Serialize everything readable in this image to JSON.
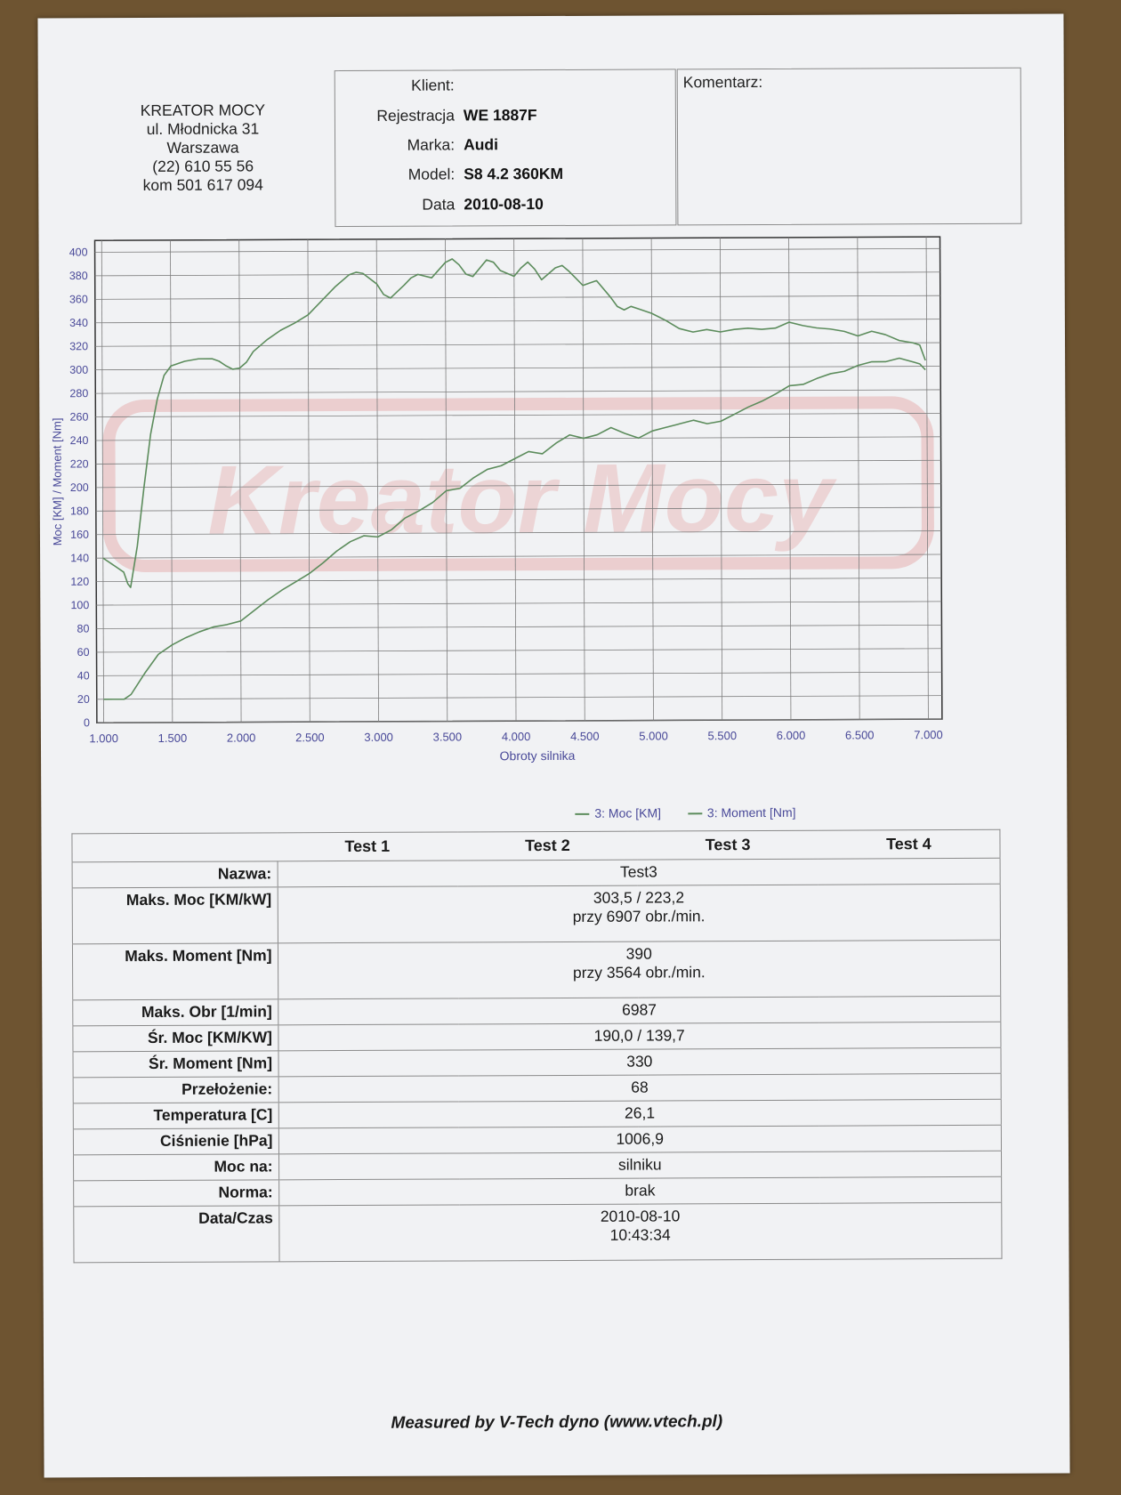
{
  "company": {
    "name": "KREATOR MOCY",
    "street": "ul. Młodnicka 31",
    "city": "Warszawa",
    "phone": "(22) 610 55 56",
    "mobile": "kom 501 617 094"
  },
  "client": {
    "client_label": "Klient:",
    "client_value": "",
    "registration_label": "Rejestracja",
    "registration_value": "WE 1887F",
    "make_label": "Marka:",
    "make_value": "Audi",
    "model_label": "Model:",
    "model_value": "S8 4.2 360KM",
    "date_label": "Data",
    "date_value": "2010-08-10"
  },
  "comment_label": "Komentarz:",
  "watermark": "Kreator Mocy",
  "legend": {
    "power": "3: Moc [KM]",
    "torque": "3: Moment [Nm]"
  },
  "colors": {
    "curve": "#5c8c5c",
    "axis_text": "#4a4a99",
    "grid": "#7d7d7d",
    "watermark": "#e6b0b0"
  },
  "chart_data": {
    "type": "line",
    "xlabel": "Obroty silnika",
    "ylabel": "Moc [KM] / Moment [Nm]",
    "xlim": [
      950,
      7100
    ],
    "ylim": [
      0,
      410
    ],
    "grid": true,
    "x_ticks": [
      1000,
      1500,
      2000,
      2500,
      3000,
      3500,
      4000,
      4500,
      5000,
      5500,
      6000,
      6500,
      7000
    ],
    "x_tick_labels": [
      "1.000",
      "1.500",
      "2.000",
      "2.500",
      "3.000",
      "3.500",
      "4.000",
      "4.500",
      "5.000",
      "5.500",
      "6.000",
      "6.500",
      "7.000"
    ],
    "y_ticks": [
      0,
      20,
      40,
      60,
      80,
      100,
      120,
      140,
      160,
      180,
      200,
      220,
      240,
      260,
      280,
      300,
      320,
      340,
      360,
      380,
      400
    ],
    "y_tick_labels": [
      "0",
      "20",
      "40",
      "60",
      "80",
      "100",
      "120",
      "140",
      "160",
      "180",
      "200",
      "220",
      "240",
      "260",
      "280",
      "300",
      "320",
      "340",
      "360",
      "380",
      "400"
    ],
    "series": [
      {
        "name": "3: Moment [Nm]",
        "x": [
          1000,
          1100,
          1150,
          1180,
          1200,
          1250,
          1300,
          1350,
          1400,
          1450,
          1500,
          1600,
          1700,
          1800,
          1850,
          1900,
          1950,
          2000,
          2050,
          2100,
          2200,
          2300,
          2400,
          2500,
          2600,
          2700,
          2800,
          2850,
          2900,
          3000,
          3050,
          3100,
          3200,
          3250,
          3300,
          3400,
          3500,
          3550,
          3600,
          3650,
          3700,
          3800,
          3850,
          3900,
          4000,
          4050,
          4100,
          4150,
          4200,
          4300,
          4350,
          4400,
          4450,
          4500,
          4550,
          4600,
          4700,
          4750,
          4800,
          4850,
          4900,
          5000,
          5100,
          5200,
          5300,
          5400,
          5500,
          5600,
          5700,
          5800,
          5900,
          6000,
          6100,
          6200,
          6300,
          6400,
          6500,
          6600,
          6700,
          6800,
          6900,
          6950,
          6990
        ],
        "y": [
          140,
          132,
          128,
          118,
          115,
          150,
          200,
          245,
          275,
          295,
          303,
          307,
          309,
          309,
          307,
          303,
          300,
          301,
          306,
          315,
          325,
          333,
          339,
          346,
          358,
          370,
          380,
          382,
          381,
          372,
          363,
          360,
          371,
          377,
          380,
          377,
          390,
          393,
          388,
          380,
          378,
          392,
          390,
          383,
          378,
          385,
          390,
          384,
          375,
          385,
          387,
          382,
          376,
          370,
          372,
          374,
          360,
          352,
          349,
          352,
          350,
          346,
          340,
          333,
          330,
          332,
          330,
          332,
          333,
          332,
          333,
          338,
          335,
          333,
          332,
          330,
          326,
          330,
          327,
          322,
          320,
          318,
          305
        ]
      },
      {
        "name": "3: Moc [KM]",
        "x": [
          1000,
          1150,
          1200,
          1300,
          1400,
          1500,
          1600,
          1700,
          1800,
          1900,
          2000,
          2100,
          2200,
          2300,
          2400,
          2500,
          2600,
          2700,
          2800,
          2900,
          3000,
          3100,
          3200,
          3300,
          3400,
          3500,
          3600,
          3700,
          3800,
          3900,
          4000,
          4100,
          4200,
          4300,
          4400,
          4500,
          4600,
          4700,
          4800,
          4900,
          5000,
          5100,
          5200,
          5300,
          5400,
          5500,
          5600,
          5700,
          5800,
          5900,
          6000,
          6100,
          6200,
          6300,
          6400,
          6500,
          6600,
          6700,
          6800,
          6907,
          6950,
          6990
        ],
        "y": [
          20,
          20,
          24,
          42,
          58,
          66,
          72,
          77,
          81,
          83,
          86,
          95,
          104,
          112,
          119,
          126,
          135,
          145,
          153,
          158,
          157,
          163,
          173,
          179,
          186,
          196,
          198,
          207,
          214,
          217,
          223,
          229,
          227,
          236,
          243,
          240,
          243,
          249,
          244,
          240,
          246,
          249,
          252,
          255,
          252,
          254,
          260,
          266,
          271,
          277,
          284,
          285,
          290,
          294,
          296,
          301,
          304,
          304,
          307,
          303.5,
          302,
          297
        ]
      }
    ]
  },
  "results": {
    "headers": [
      "Test 1",
      "Test 2",
      "Test 3",
      "Test 4"
    ],
    "rows": [
      {
        "label": "Nazwa:",
        "value": "Test3"
      },
      {
        "label": "Maks. Moc [KM/kW]",
        "value": "303,5 / 223,2",
        "value2": "przy 6907 obr./min."
      },
      {
        "label": "Maks. Moment [Nm]",
        "value": "390",
        "value2": "przy 3564 obr./min."
      },
      {
        "label": "Maks. Obr [1/min]",
        "value": "6987"
      },
      {
        "label": "Śr. Moc [KM/KW]",
        "value": "190,0 / 139,7"
      },
      {
        "label": "Śr. Moment [Nm]",
        "value": "330"
      },
      {
        "label": "Przełożenie:",
        "value": "68"
      },
      {
        "label": "Temperatura [C]",
        "value": "26,1"
      },
      {
        "label": "Ciśnienie [hPa]",
        "value": "1006,9"
      },
      {
        "label": "Moc na:",
        "value": "silniku"
      },
      {
        "label": "Norma:",
        "value": "brak"
      },
      {
        "label": "Data/Czas",
        "value": "2010-08-10",
        "value2": "10:43:34"
      }
    ]
  },
  "footer": "Measured by V-Tech dyno (www.vtech.pl)"
}
